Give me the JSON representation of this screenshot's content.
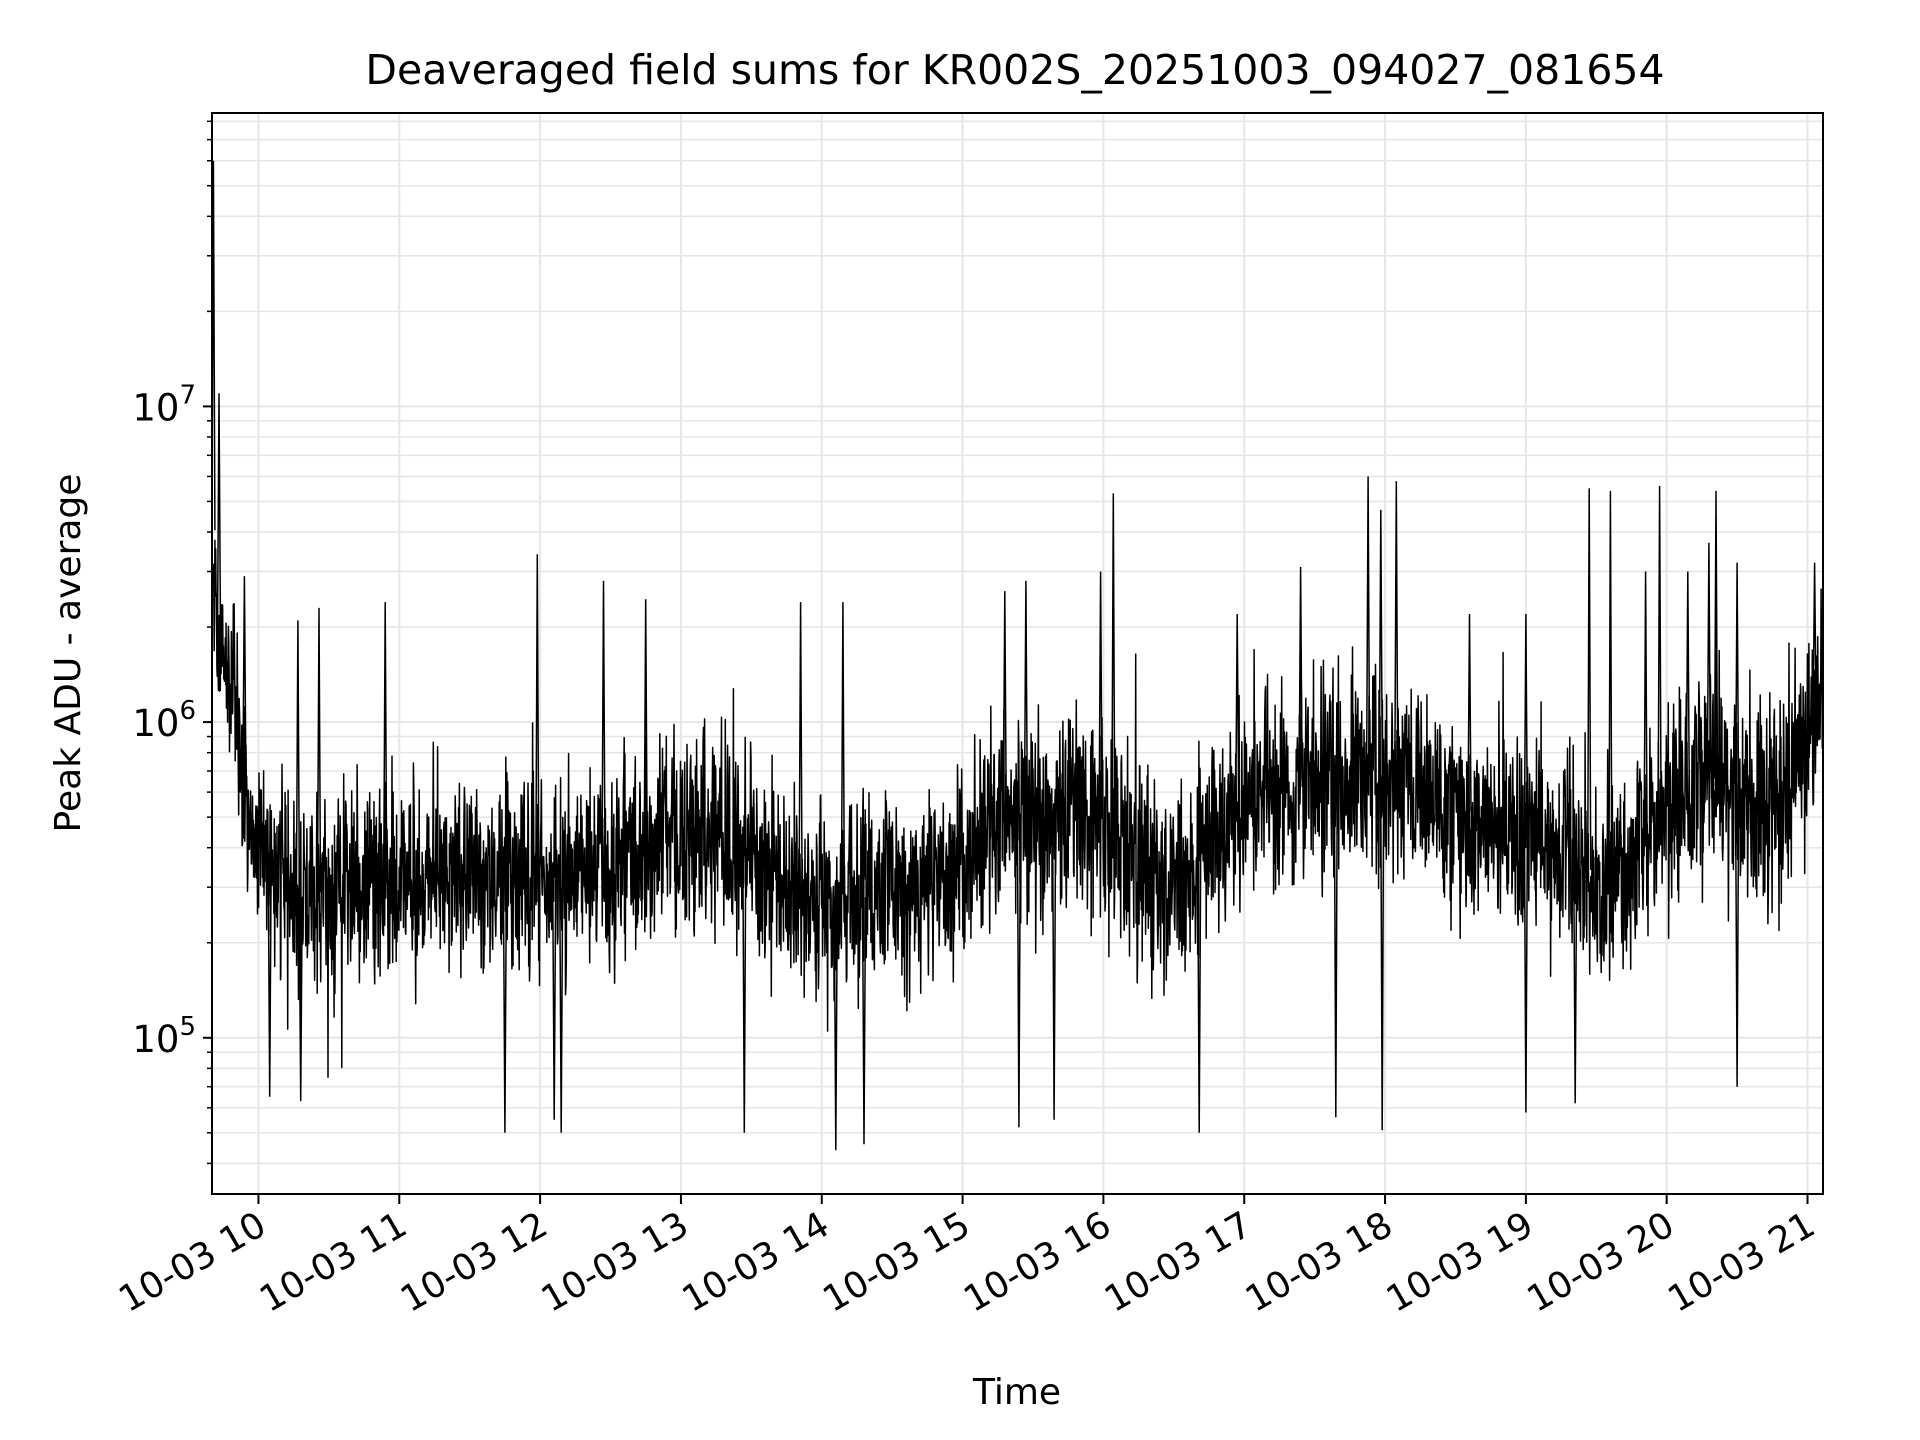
{
  "chart_data": {
    "type": "line",
    "title": "Deaveraged field sums for KR002S_20251003_094027_081654",
    "xlabel": "Time",
    "ylabel": "Peak ADU - average",
    "yscale": "log",
    "grid": true,
    "line_color": "#000000",
    "grid_color": "#e6e6e6",
    "x_unit": "hours since 10-03 00:00",
    "xlim": [
      9.67,
      21.11
    ],
    "ylim": [
      32000,
      85000000
    ],
    "x_ticks": [
      {
        "value": 10,
        "label": "10-03 10"
      },
      {
        "value": 11,
        "label": "10-03 11"
      },
      {
        "value": 12,
        "label": "10-03 12"
      },
      {
        "value": 13,
        "label": "10-03 13"
      },
      {
        "value": 14,
        "label": "10-03 14"
      },
      {
        "value": 15,
        "label": "10-03 15"
      },
      {
        "value": 16,
        "label": "10-03 16"
      },
      {
        "value": 17,
        "label": "10-03 17"
      },
      {
        "value": 18,
        "label": "10-03 18"
      },
      {
        "value": 19,
        "label": "10-03 19"
      },
      {
        "value": 20,
        "label": "10-03 20"
      },
      {
        "value": 21,
        "label": "10-03 21"
      }
    ],
    "y_ticks": [
      {
        "value": 100000,
        "base": "10",
        "exp": "5"
      },
      {
        "value": 1000000,
        "base": "10",
        "exp": "6"
      },
      {
        "value": 10000000,
        "base": "10",
        "exp": "7"
      }
    ],
    "series": [
      {
        "name": "deaveraged field sums",
        "trend_knots": {
          "x": [
            9.67,
            9.7,
            9.75,
            9.85,
            9.95,
            10.3,
            11.0,
            12.0,
            12.7,
            13.3,
            14.0,
            14.9,
            15.3,
            15.65,
            15.9,
            16.4,
            17.0,
            17.5,
            18.0,
            18.6,
            19.2,
            19.6,
            20.0,
            20.3,
            20.6,
            20.9,
            21.11
          ],
          "y": [
            5500000,
            2200000,
            1500000,
            1100000,
            420000,
            280000,
            330000,
            310000,
            380000,
            450000,
            260000,
            320000,
            500000,
            480000,
            550000,
            280000,
            560000,
            680000,
            680000,
            520000,
            420000,
            300000,
            520000,
            700000,
            500000,
            620000,
            1300000
          ]
        },
        "noise_decades": 0.32,
        "samples": 4200,
        "spikes": [
          {
            "x": 9.68,
            "y": 60000000
          },
          {
            "x": 9.72,
            "y": 11000000
          },
          {
            "x": 9.9,
            "y": 2900000
          },
          {
            "x": 10.28,
            "y": 2100000
          },
          {
            "x": 10.43,
            "y": 2300000
          },
          {
            "x": 10.9,
            "y": 2400000
          },
          {
            "x": 11.98,
            "y": 3400000
          },
          {
            "x": 12.45,
            "y": 2800000
          },
          {
            "x": 12.75,
            "y": 2450000
          },
          {
            "x": 13.85,
            "y": 2400000
          },
          {
            "x": 14.15,
            "y": 2400000
          },
          {
            "x": 15.3,
            "y": 2600000
          },
          {
            "x": 15.45,
            "y": 2800000
          },
          {
            "x": 15.98,
            "y": 3000000
          },
          {
            "x": 16.07,
            "y": 5300000
          },
          {
            "x": 16.95,
            "y": 2200000
          },
          {
            "x": 17.4,
            "y": 3100000
          },
          {
            "x": 17.88,
            "y": 6000000
          },
          {
            "x": 17.97,
            "y": 4700000
          },
          {
            "x": 18.08,
            "y": 5800000
          },
          {
            "x": 18.6,
            "y": 2200000
          },
          {
            "x": 19.0,
            "y": 2200000
          },
          {
            "x": 19.45,
            "y": 5500000
          },
          {
            "x": 19.6,
            "y": 5400000
          },
          {
            "x": 19.85,
            "y": 3000000
          },
          {
            "x": 19.95,
            "y": 5600000
          },
          {
            "x": 20.15,
            "y": 3000000
          },
          {
            "x": 20.3,
            "y": 3700000
          },
          {
            "x": 20.35,
            "y": 5400000
          },
          {
            "x": 20.5,
            "y": 3200000
          },
          {
            "x": 21.05,
            "y": 3200000
          }
        ],
        "dips": [
          {
            "x": 10.08,
            "y": 65000
          },
          {
            "x": 10.3,
            "y": 63000
          },
          {
            "x": 11.75,
            "y": 50000
          },
          {
            "x": 12.1,
            "y": 55000
          },
          {
            "x": 12.15,
            "y": 50000
          },
          {
            "x": 13.45,
            "y": 50000
          },
          {
            "x": 14.1,
            "y": 44000
          },
          {
            "x": 14.3,
            "y": 46000
          },
          {
            "x": 15.4,
            "y": 52000
          },
          {
            "x": 15.65,
            "y": 55000
          },
          {
            "x": 16.68,
            "y": 50000
          },
          {
            "x": 17.65,
            "y": 56000
          },
          {
            "x": 17.98,
            "y": 51000
          },
          {
            "x": 19.0,
            "y": 58000
          },
          {
            "x": 19.35,
            "y": 62000
          },
          {
            "x": 20.5,
            "y": 70000
          }
        ]
      }
    ]
  }
}
